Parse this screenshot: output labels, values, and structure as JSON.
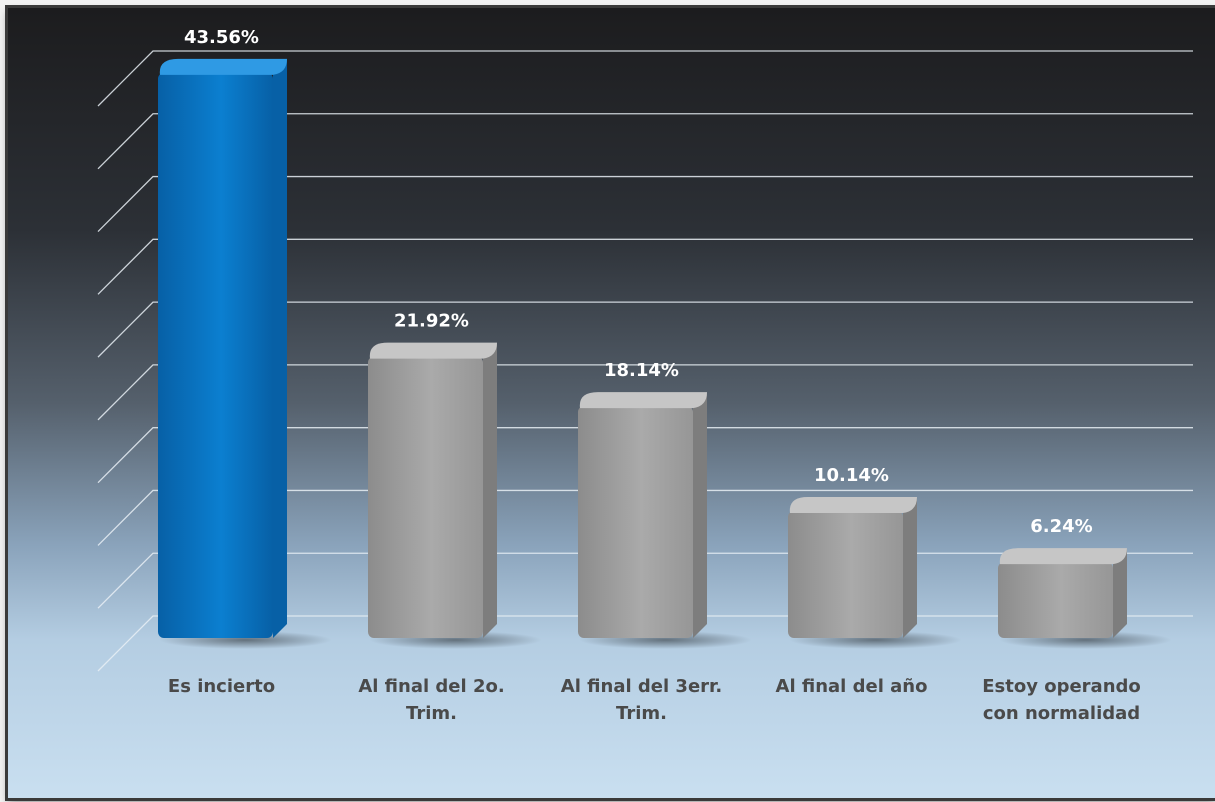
{
  "chart_data": {
    "type": "bar",
    "categories": [
      [
        "Es incierto"
      ],
      [
        "Al final del 2o.",
        "Trim."
      ],
      [
        "Al final del 3err.",
        "Trim."
      ],
      [
        "Al final del año"
      ],
      [
        "Estoy operando",
        "con normalidad"
      ]
    ],
    "values": [
      43.56,
      21.92,
      18.14,
      10.14,
      6.24
    ],
    "data_labels": [
      "43.56%",
      "21.92%",
      "18.14%",
      "10.14%",
      "6.24%"
    ],
    "highlighted_index": 0,
    "ylim": [
      0,
      45
    ],
    "grid": true,
    "colors": {
      "highlight": "#0b7fd0",
      "highlight_dark": "#0760a6",
      "highlight_top": "#2f9ae4",
      "bar": "#aaaaaa",
      "bar_dark": "#7d7d7d",
      "bar_top": "#c6c6c6",
      "gridline": "#e8eef4",
      "label_top": "#ffffff",
      "category_label": "#4a4a4a"
    }
  }
}
